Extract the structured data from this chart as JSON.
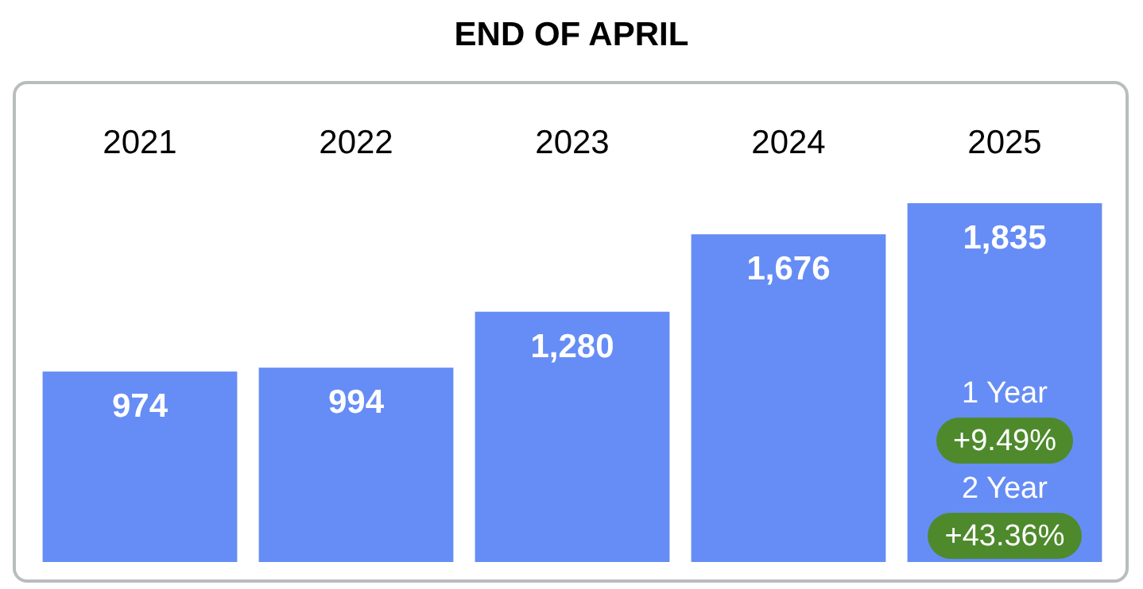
{
  "chart_data": {
    "type": "bar",
    "title": "END OF APRIL",
    "categories": [
      "2021",
      "2022",
      "2023",
      "2024",
      "2025"
    ],
    "values": [
      974,
      994,
      1280,
      1676,
      1835
    ],
    "value_labels": [
      "974",
      "994",
      "1,280",
      "1,676",
      "1,835"
    ],
    "color": "#668df5",
    "tick_labels": "x",
    "annotations": [
      "1 Year",
      "+9.49%",
      "2 Year",
      "+43.36%"
    ]
  }
}
